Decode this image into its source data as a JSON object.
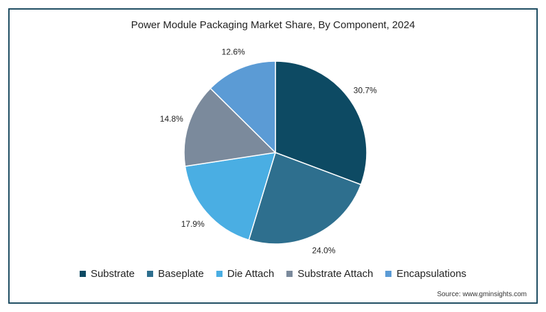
{
  "chart_data": {
    "type": "pie",
    "title": "Power Module Packaging Market Share, By Component, 2024",
    "slices": [
      {
        "name": "Substrate",
        "value": 30.7,
        "label": "30.7%",
        "color": "#0d4a63"
      },
      {
        "name": "Baseplate",
        "value": 24.0,
        "label": "24.0%",
        "color": "#2e6f8e"
      },
      {
        "name": "Die Attach",
        "value": 17.9,
        "label": "17.9%",
        "color": "#4aaee3"
      },
      {
        "name": "Substrate Attach",
        "value": 14.8,
        "label": "14.8%",
        "color": "#7b8a9c"
      },
      {
        "name": "Encapsulations",
        "value": 12.6,
        "label": "12.6%",
        "color": "#5b9bd5"
      }
    ],
    "legend_position": "bottom",
    "source": "Source: www.gminsights.com"
  }
}
